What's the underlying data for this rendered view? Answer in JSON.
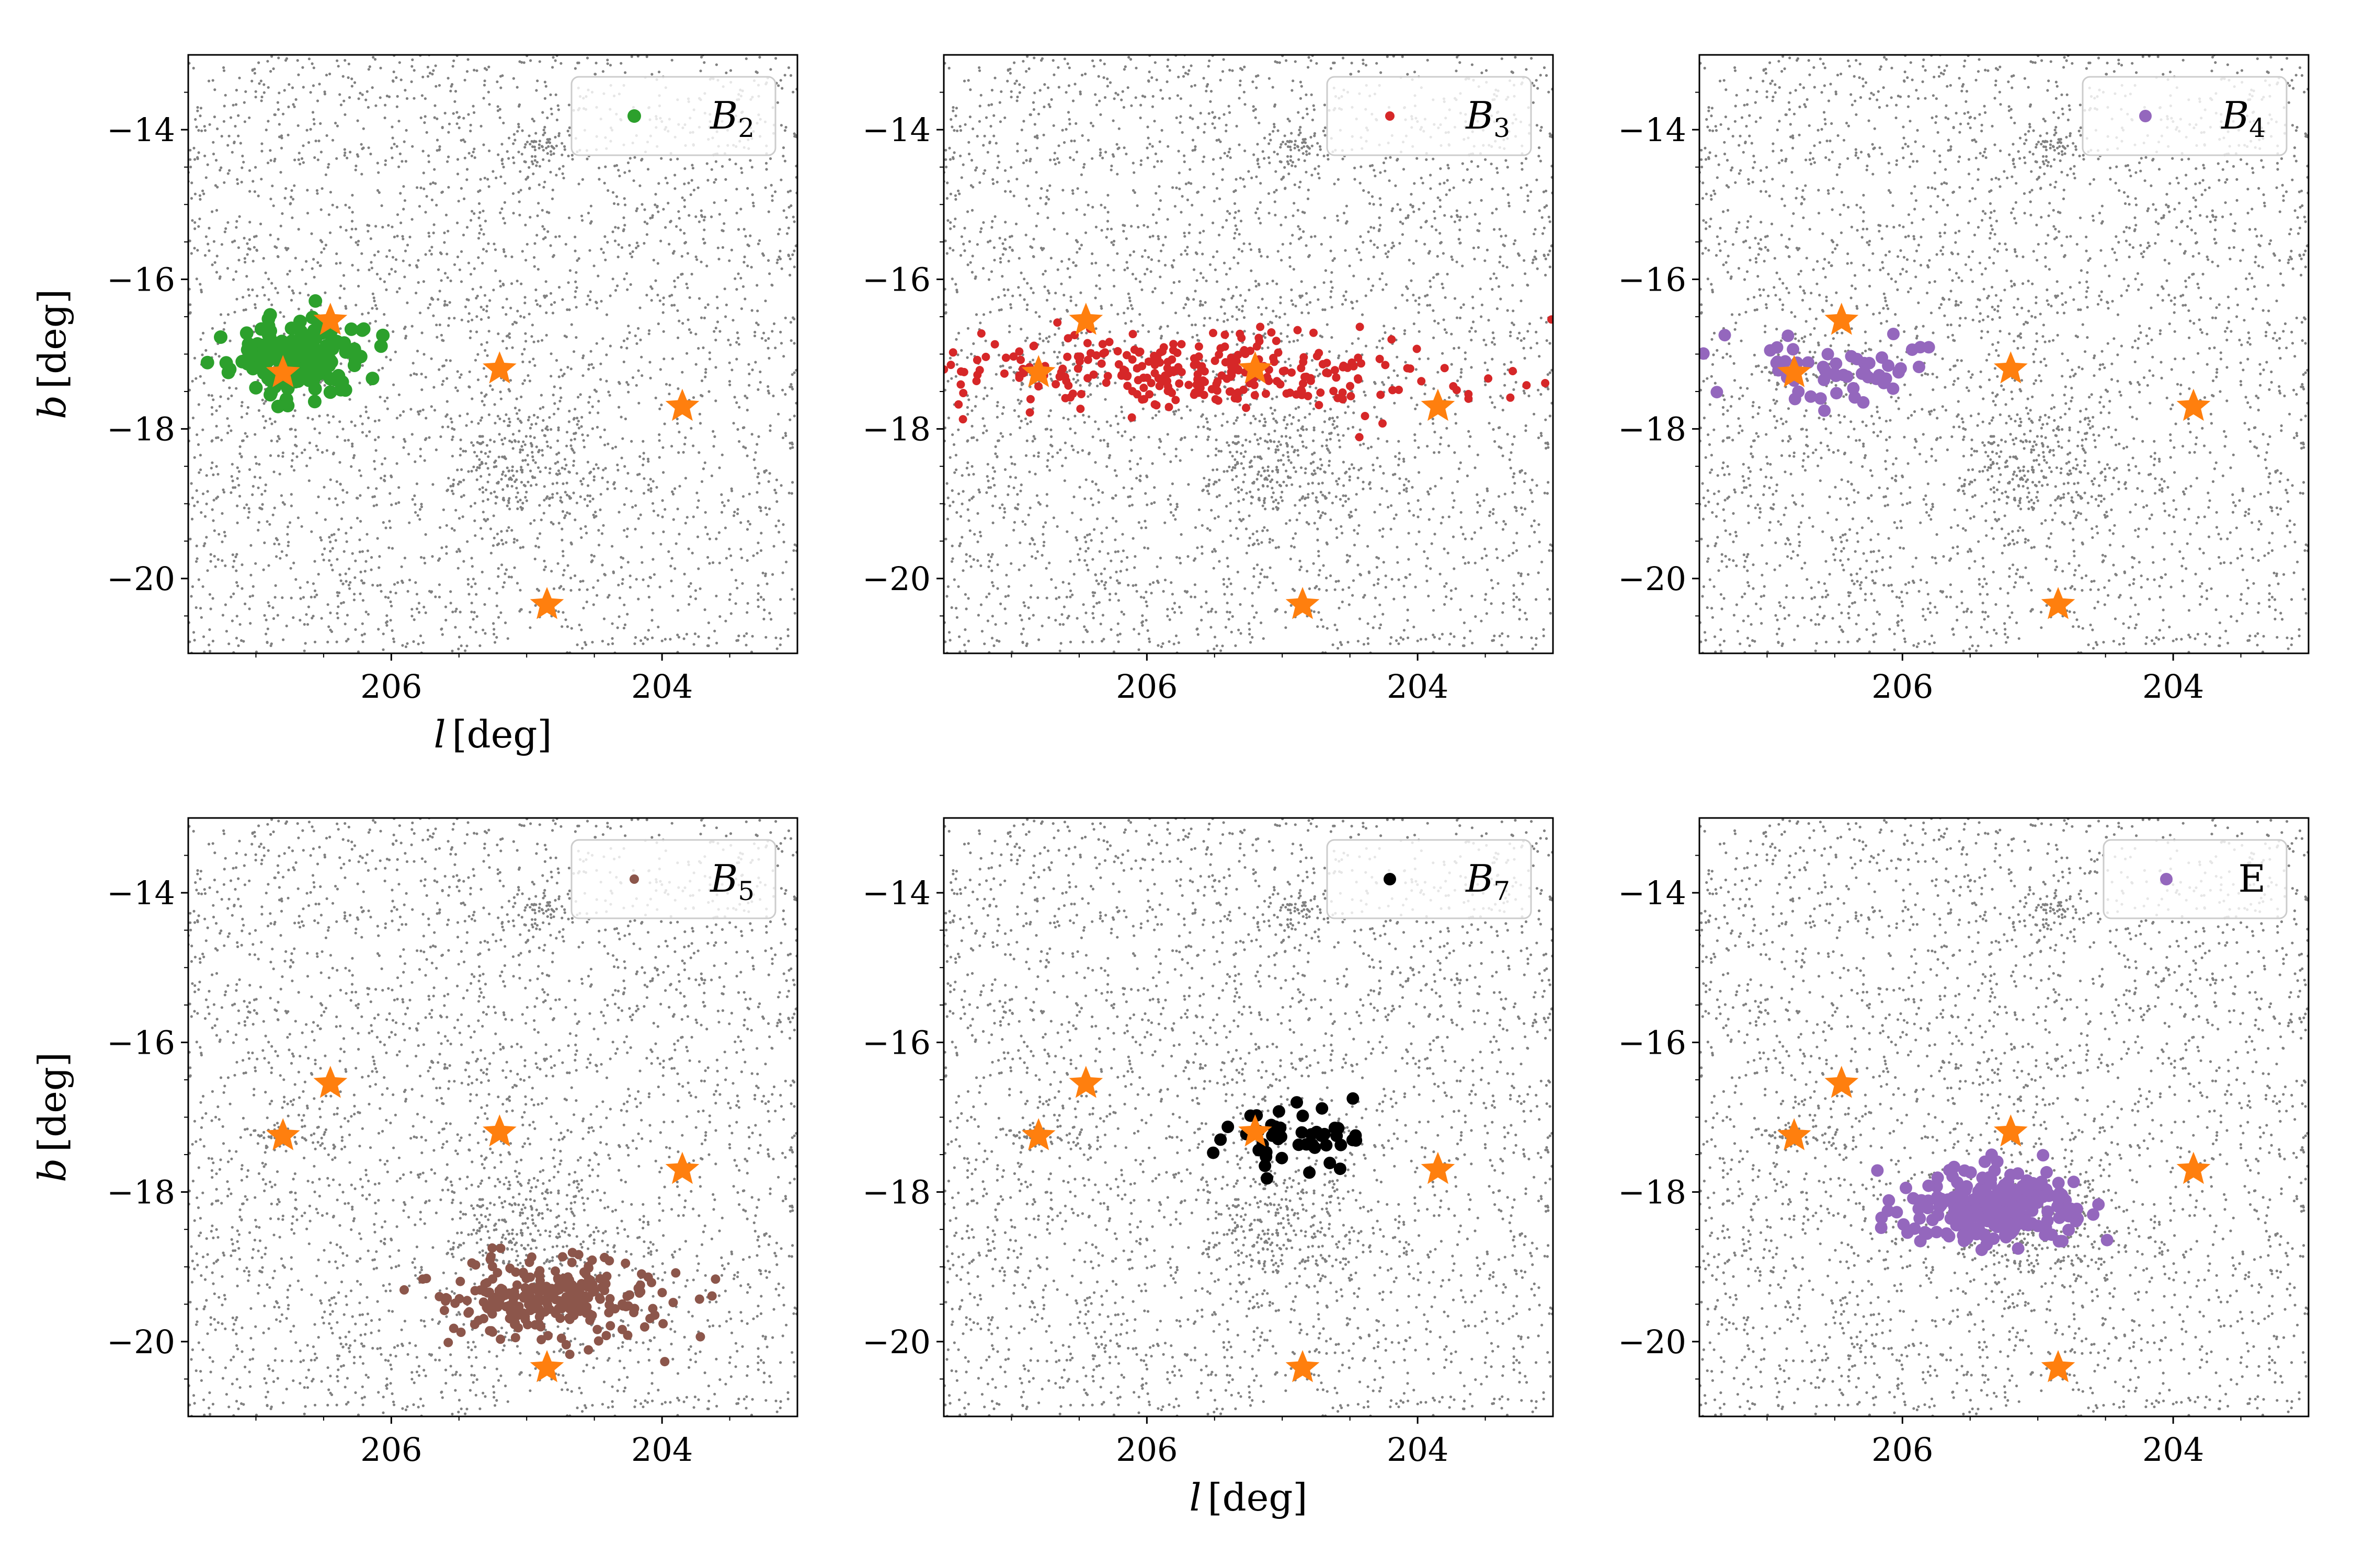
{
  "colors": {
    "background_stars": "#808080",
    "highlight_star": "#ff7f0e",
    "legend_border": "#cccccc"
  },
  "chart_data": [
    {
      "type": "scatter",
      "id": "B2",
      "legend_base": "B",
      "legend_sub": "2",
      "color": "#2ca02c",
      "xlabel_main": "l",
      "xlabel_unit": "[deg]",
      "ylabel_main": "b",
      "ylabel_unit": "[deg]",
      "xlim": [
        207.5,
        203.0
      ],
      "ylim": [
        -21.0,
        -13.0
      ],
      "xticks": [
        206,
        204
      ],
      "yticks": [
        -14,
        -16,
        -18,
        -20
      ],
      "xtick_labels": [
        "206",
        "204"
      ],
      "ytick_labels": [
        "−14",
        "−16",
        "−18",
        "−20"
      ],
      "show_xlabel": true,
      "show_ylabel": true,
      "cluster": {
        "center_l": 206.7,
        "center_b": -17.05,
        "spread_l": 0.42,
        "spread_b": 0.42,
        "count": 190,
        "marker_radius": 13
      }
    },
    {
      "type": "scatter",
      "id": "B3",
      "legend_base": "B",
      "legend_sub": "3",
      "color": "#d62728",
      "xlabel_main": "l",
      "xlabel_unit": "[deg]",
      "ylabel_main": "b",
      "ylabel_unit": "[deg]",
      "xlim": [
        207.5,
        203.0
      ],
      "ylim": [
        -21.0,
        -13.0
      ],
      "xticks": [
        206,
        204
      ],
      "yticks": [
        -14,
        -16,
        -18,
        -20
      ],
      "xtick_labels": [
        "206",
        "204"
      ],
      "ytick_labels": [
        "−14",
        "−16",
        "−18",
        "−20"
      ],
      "show_xlabel": false,
      "show_ylabel": false,
      "cluster": {
        "center_l": 205.6,
        "center_b": -17.25,
        "spread_l": 1.55,
        "spread_b": 0.45,
        "count": 300,
        "marker_radius": 8
      }
    },
    {
      "type": "scatter",
      "id": "B4",
      "legend_base": "B",
      "legend_sub": "4",
      "color": "#9467bd",
      "xlabel_main": "l",
      "xlabel_unit": "[deg]",
      "ylabel_main": "b",
      "ylabel_unit": "[deg]",
      "xlim": [
        207.5,
        203.0
      ],
      "ylim": [
        -21.0,
        -13.0
      ],
      "xticks": [
        206,
        204
      ],
      "yticks": [
        -14,
        -16,
        -18,
        -20
      ],
      "xtick_labels": [
        "206",
        "204"
      ],
      "ytick_labels": [
        "−14",
        "−16",
        "−18",
        "−20"
      ],
      "show_xlabel": false,
      "show_ylabel": false,
      "cluster": {
        "center_l": 206.5,
        "center_b": -17.2,
        "spread_l": 0.65,
        "spread_b": 0.4,
        "count": 55,
        "marker_radius": 12
      }
    },
    {
      "type": "scatter",
      "id": "B5",
      "legend_base": "B",
      "legend_sub": "5",
      "color": "#8c564b",
      "xlabel_main": "l",
      "xlabel_unit": "[deg]",
      "ylabel_main": "b",
      "ylabel_unit": "[deg]",
      "xlim": [
        207.5,
        203.0
      ],
      "ylim": [
        -21.0,
        -13.0
      ],
      "xticks": [
        206,
        204
      ],
      "yticks": [
        -14,
        -16,
        -18,
        -20
      ],
      "xtick_labels": [
        "206",
        "204"
      ],
      "ytick_labels": [
        "−14",
        "−16",
        "−18",
        "−20"
      ],
      "show_xlabel": false,
      "show_ylabel": true,
      "cluster": {
        "center_l": 204.85,
        "center_b": -19.4,
        "spread_l": 0.72,
        "spread_b": 0.45,
        "count": 260,
        "marker_radius": 9
      }
    },
    {
      "type": "scatter",
      "id": "B7",
      "legend_base": "B",
      "legend_sub": "7",
      "color": "#000000",
      "xlabel_main": "l",
      "xlabel_unit": "[deg]",
      "ylabel_main": "b",
      "ylabel_unit": "[deg]",
      "xlim": [
        207.5,
        203.0
      ],
      "ylim": [
        -21.0,
        -13.0
      ],
      "xticks": [
        206,
        204
      ],
      "yticks": [
        -14,
        -16,
        -18,
        -20
      ],
      "xtick_labels": [
        "206",
        "204"
      ],
      "ytick_labels": [
        "−14",
        "−16",
        "−18",
        "−20"
      ],
      "show_xlabel": true,
      "show_ylabel": false,
      "cluster": {
        "center_l": 204.95,
        "center_b": -17.3,
        "spread_l": 0.55,
        "spread_b": 0.3,
        "count": 45,
        "marker_radius": 12
      }
    },
    {
      "type": "scatter",
      "id": "E",
      "legend_base": "E",
      "legend_sub": "",
      "color": "#9467bd",
      "xlabel_main": "l",
      "xlabel_unit": "[deg]",
      "ylabel_main": "b",
      "ylabel_unit": "[deg]",
      "xlim": [
        207.5,
        203.0
      ],
      "ylim": [
        -21.0,
        -13.0
      ],
      "xticks": [
        206,
        204
      ],
      "yticks": [
        -14,
        -16,
        -18,
        -20
      ],
      "xtick_labels": [
        "206",
        "204"
      ],
      "ytick_labels": [
        "−14",
        "−16",
        "−18",
        "−20"
      ],
      "show_xlabel": false,
      "show_ylabel": false,
      "cluster": {
        "center_l": 205.3,
        "center_b": -18.2,
        "spread_l": 0.5,
        "spread_b": 0.4,
        "count": 240,
        "marker_radius": 12
      }
    }
  ],
  "highlight_stars": [
    {
      "l": 206.8,
      "b": -17.25
    },
    {
      "l": 206.45,
      "b": -16.55
    },
    {
      "l": 205.2,
      "b": -17.2
    },
    {
      "l": 203.85,
      "b": -17.7
    },
    {
      "l": 204.85,
      "b": -20.35
    }
  ],
  "background_field": {
    "uniform_count": 3000,
    "concentrations": [
      {
        "l": 205.0,
        "b": -18.4,
        "sl": 0.28,
        "sb": 0.45,
        "count": 220
      },
      {
        "l": 204.9,
        "b": -14.3,
        "sl": 0.12,
        "sb": 0.18,
        "count": 60
      },
      {
        "l": 206.8,
        "b": -17.25,
        "sl": 0.1,
        "sb": 0.1,
        "count": 40
      }
    ]
  }
}
